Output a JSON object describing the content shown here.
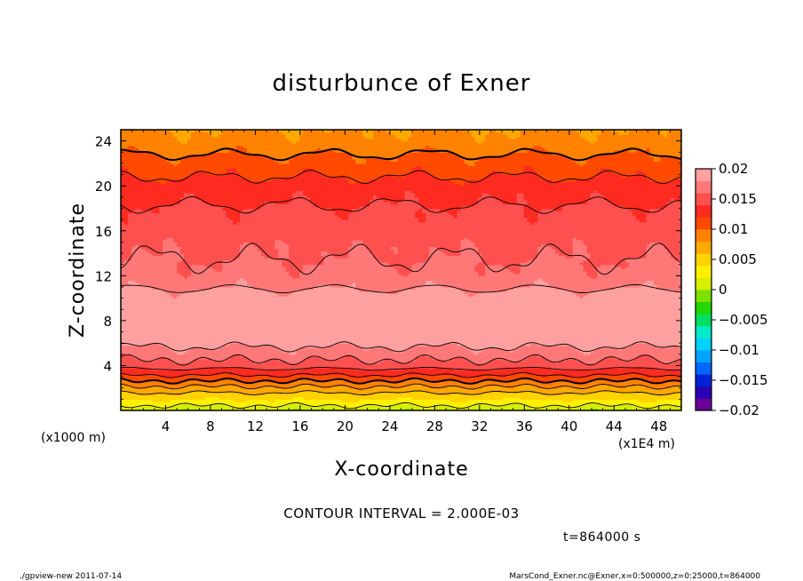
{
  "chart_data": {
    "type": "heatmap",
    "title": "disturbunce of Exner",
    "xlabel": "X-coordinate",
    "ylabel": "Z-coordinate",
    "x_unit_label": "(x1E4 m)",
    "y_unit_label": "(x1000 m)",
    "xlim": [
      0,
      50
    ],
    "ylim": [
      0,
      25
    ],
    "x_ticks": [
      4,
      8,
      12,
      16,
      20,
      24,
      28,
      32,
      36,
      40,
      44,
      48
    ],
    "y_ticks": [
      4,
      8,
      12,
      16,
      20,
      24
    ],
    "x_tick_labels": [
      "4",
      "8",
      "12",
      "16",
      "20",
      "24",
      "28",
      "32",
      "36",
      "40",
      "44",
      "48"
    ],
    "y_tick_labels": [
      "4",
      "8",
      "12",
      "16",
      "20",
      "24"
    ],
    "contour_interval_text": "CONTOUR INTERVAL = 2.000E-03",
    "time_text": "t=864000 s",
    "colorbar": {
      "min": -0.02,
      "max": 0.02,
      "tick_values": [
        0.02,
        0.015,
        0.01,
        0.005,
        0,
        -0.005,
        -0.01,
        -0.015,
        -0.02
      ],
      "tick_labels": [
        "0.02",
        "0.015",
        "0.01",
        "0.005",
        "0",
        "−0.005",
        "−0.01",
        "−0.015",
        "−0.02"
      ],
      "colors": [
        "#6b0096",
        "#2a00b4",
        "#0022d6",
        "#0066ff",
        "#00a2ff",
        "#00d2ff",
        "#00ecc8",
        "#00e060",
        "#22d800",
        "#7fe000",
        "#d4f000",
        "#fff000",
        "#ffd200",
        "#ffa800",
        "#ff8200",
        "#ff4a00",
        "#ff2a20",
        "#ff5050",
        "#ff7878",
        "#ffa0a0"
      ]
    },
    "profile": {
      "z": [
        0,
        1,
        2,
        3,
        4,
        5,
        6,
        7,
        8,
        9,
        10,
        11,
        12,
        13,
        14,
        15,
        16,
        17,
        18,
        19,
        20,
        21,
        22,
        23,
        24,
        25
      ],
      "value": [
        0.0005,
        0.004,
        0.0075,
        0.0115,
        0.015,
        0.017,
        0.0185,
        0.0195,
        0.0198,
        0.0195,
        0.019,
        0.0178,
        0.0168,
        0.0162,
        0.0158,
        0.0154,
        0.0152,
        0.0148,
        0.0142,
        0.0135,
        0.0128,
        0.0118,
        0.0108,
        0.0098,
        0.0088,
        0.008
      ]
    }
  },
  "footer": {
    "left": "./gpview-new   2011-07-14",
    "right": "MarsCond_Exner.nc@Exner,x=0:500000,z=0:25000,t=864000"
  }
}
